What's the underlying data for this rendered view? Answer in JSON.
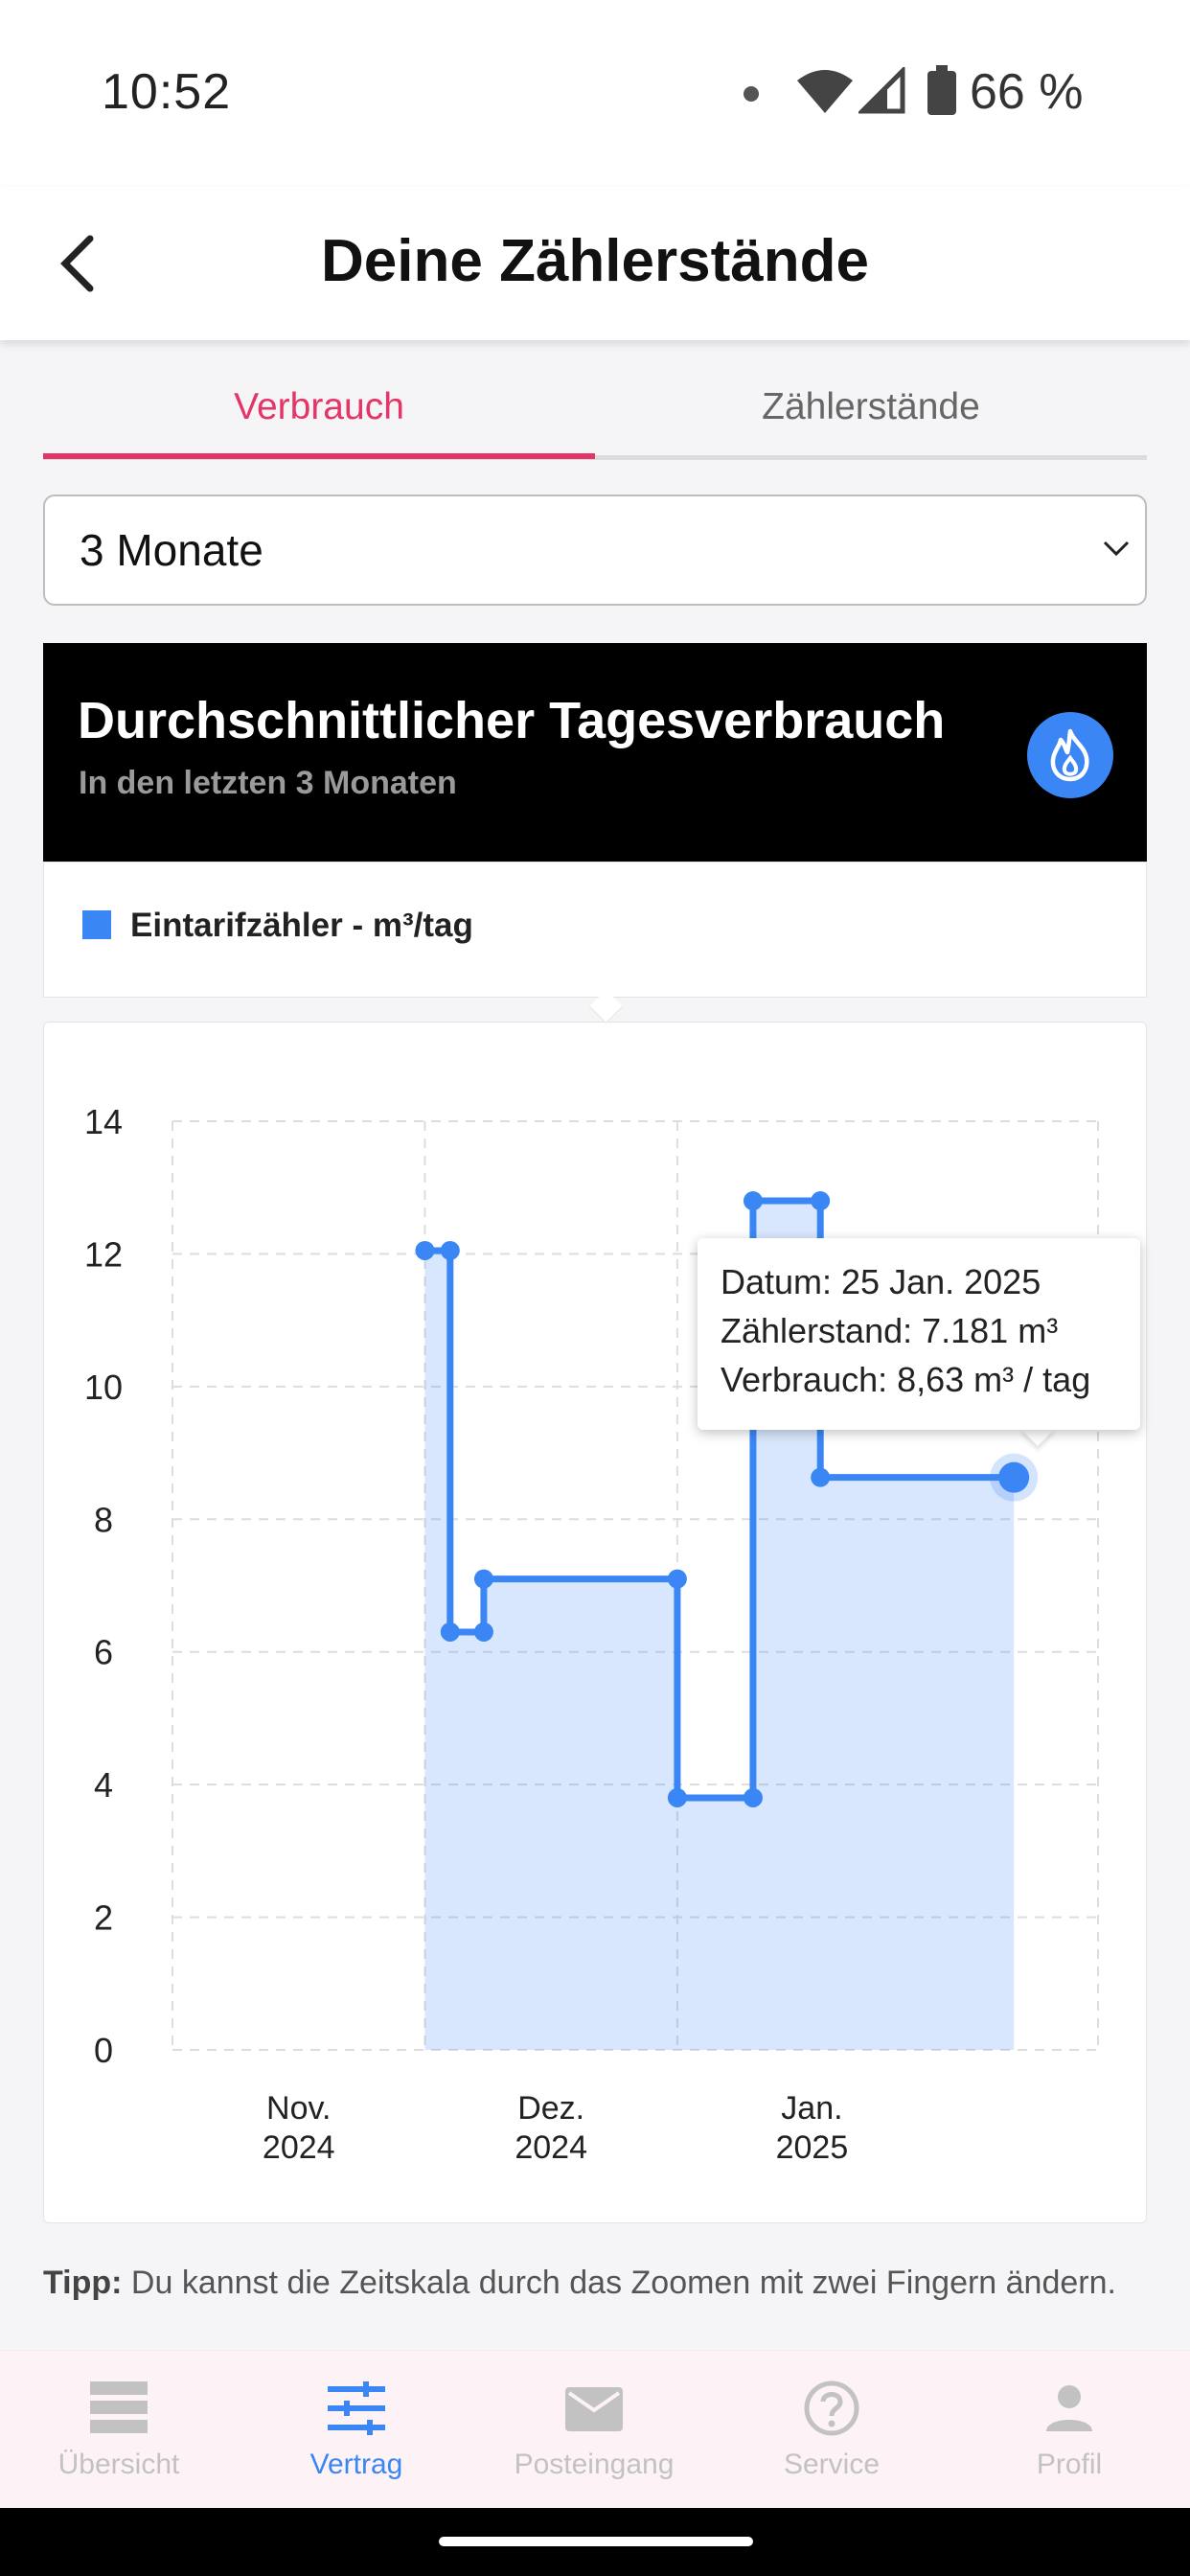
{
  "status_bar": {
    "time": "10:52",
    "battery": "66 %"
  },
  "app_bar": {
    "title": "Deine Zählerstände"
  },
  "tabs": [
    {
      "label": "Verbrauch",
      "active": true
    },
    {
      "label": "Zählerstände",
      "active": false
    }
  ],
  "range_select": {
    "value": "3 Monate"
  },
  "card": {
    "title": "Durchschnittlicher Tagesverbrauch",
    "subtitle": "In den letzten 3 Monaten",
    "icon": "flame-icon",
    "accent": "#3b86f5"
  },
  "legend": {
    "label": "Eintarifzähler - m³/tag",
    "color": "#3b86f5"
  },
  "chart_data": {
    "type": "area",
    "step": true,
    "x_ticks": [
      {
        "line1": "Nov.",
        "line2": "2024"
      },
      {
        "line1": "Dez.",
        "line2": "2024"
      },
      {
        "line1": "Jan.",
        "line2": "2025"
      }
    ],
    "ylim": [
      0,
      14
    ],
    "y_ticks": [
      0,
      2,
      4,
      6,
      8,
      10,
      12,
      14
    ],
    "grid": true,
    "series": [
      {
        "name": "Eintarifzähler - m³/tag",
        "color": "#3b86f5",
        "points": [
          {
            "x": "2024-11-16",
            "y": 12.05
          },
          {
            "x": "2024-11-19",
            "y": 12.05
          },
          {
            "x": "2024-11-19",
            "y": 6.3
          },
          {
            "x": "2024-11-23",
            "y": 6.3
          },
          {
            "x": "2024-11-23",
            "y": 7.1
          },
          {
            "x": "2024-12-16",
            "y": 7.1
          },
          {
            "x": "2024-12-16",
            "y": 3.8
          },
          {
            "x": "2024-12-25",
            "y": 3.8
          },
          {
            "x": "2024-12-25",
            "y": 12.8
          },
          {
            "x": "2025-01-02",
            "y": 12.8
          },
          {
            "x": "2025-01-02",
            "y": 8.63
          },
          {
            "x": "2025-01-25",
            "y": 8.63
          }
        ]
      }
    ],
    "tooltip": {
      "datum": "Datum: 25 Jan. 2025",
      "zaehlerstand": "Zählerstand: 7.181 m³",
      "verbrauch": "Verbrauch: 8,63 m³ / tag"
    }
  },
  "tip": {
    "bold": "Tipp:",
    "text": " Du kannst die Zeitskala durch das Zoomen mit zwei Fingern ändern."
  },
  "bottom_nav": [
    {
      "label": "Übersicht",
      "icon": "overview-icon",
      "active": false
    },
    {
      "label": "Vertrag",
      "icon": "sliders-icon",
      "active": true
    },
    {
      "label": "Posteingang",
      "icon": "mail-icon",
      "active": false
    },
    {
      "label": "Service",
      "icon": "help-icon",
      "active": false
    },
    {
      "label": "Profil",
      "icon": "profile-icon",
      "active": false
    }
  ]
}
